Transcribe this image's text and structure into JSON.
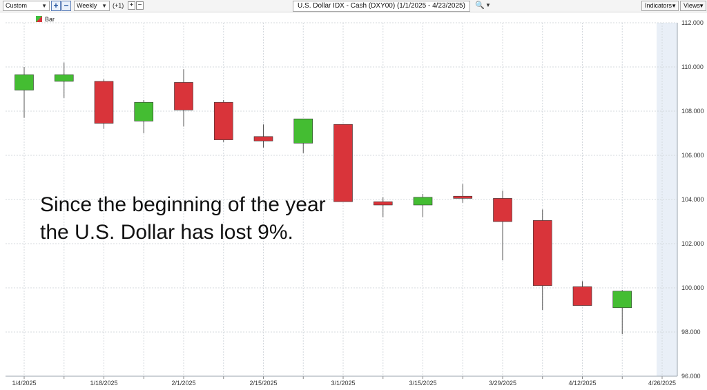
{
  "toolbar": {
    "period_select": "Custom",
    "interval_select": "Weekly",
    "offset_label": "(+1)",
    "chart_title": "U.S. Dollar IDX - Cash (DXY00) (1/1/2025 - 4/23/2025)",
    "search_icon": "magnifier-icon",
    "indicators_label": "Indicators",
    "views_label": "Views"
  },
  "legend": {
    "label": "Bar"
  },
  "annotation": {
    "line1": "Since the beginning of the year",
    "line2": "the U.S. Dollar has lost 9%."
  },
  "colors": {
    "up": "#44bd32",
    "down": "#d9343a",
    "future_band": "#e9eff7"
  },
  "chart_data": {
    "type": "candlestick",
    "x_tick_labels": [
      "1/4/2025",
      "1/18/2025",
      "2/1/2025",
      "2/15/2025",
      "3/1/2025",
      "3/15/2025",
      "3/29/2025",
      "4/12/2025",
      "4/26/2025"
    ],
    "y_tick_labels": [
      "112.000",
      "110.000",
      "108.000",
      "106.000",
      "104.000",
      "102.000",
      "100.000",
      "98.000",
      "96.000"
    ],
    "ylim": [
      96,
      112
    ],
    "y_ticks": [
      112,
      110,
      108,
      106,
      104,
      102,
      100,
      98,
      96
    ],
    "grid": true,
    "candles": [
      {
        "open": 108.95,
        "high": 110.0,
        "low": 107.7,
        "close": 109.65
      },
      {
        "open": 109.35,
        "high": 110.2,
        "low": 108.6,
        "close": 109.65
      },
      {
        "open": 109.35,
        "high": 109.45,
        "low": 107.2,
        "close": 107.45
      },
      {
        "open": 107.55,
        "high": 108.5,
        "low": 107.0,
        "close": 108.4
      },
      {
        "open": 109.3,
        "high": 109.9,
        "low": 107.3,
        "close": 108.05
      },
      {
        "open": 108.4,
        "high": 108.5,
        "low": 106.6,
        "close": 106.7
      },
      {
        "open": 106.85,
        "high": 107.4,
        "low": 106.35,
        "close": 106.65
      },
      {
        "open": 106.55,
        "high": 107.65,
        "low": 106.1,
        "close": 107.65
      },
      {
        "open": 107.4,
        "high": 107.4,
        "low": 103.9,
        "close": 103.9
      },
      {
        "open": 103.9,
        "high": 104.1,
        "low": 103.2,
        "close": 103.75
      },
      {
        "open": 103.75,
        "high": 104.25,
        "low": 103.2,
        "close": 104.1
      },
      {
        "open": 104.15,
        "high": 104.7,
        "low": 103.85,
        "close": 104.05
      },
      {
        "open": 104.05,
        "high": 104.4,
        "low": 101.25,
        "close": 103.0
      },
      {
        "open": 103.05,
        "high": 103.55,
        "low": 99.0,
        "close": 100.1
      },
      {
        "open": 100.05,
        "high": 100.3,
        "low": 99.2,
        "close": 99.2
      },
      {
        "open": 99.1,
        "high": 99.9,
        "low": 97.9,
        "close": 99.85
      }
    ]
  }
}
